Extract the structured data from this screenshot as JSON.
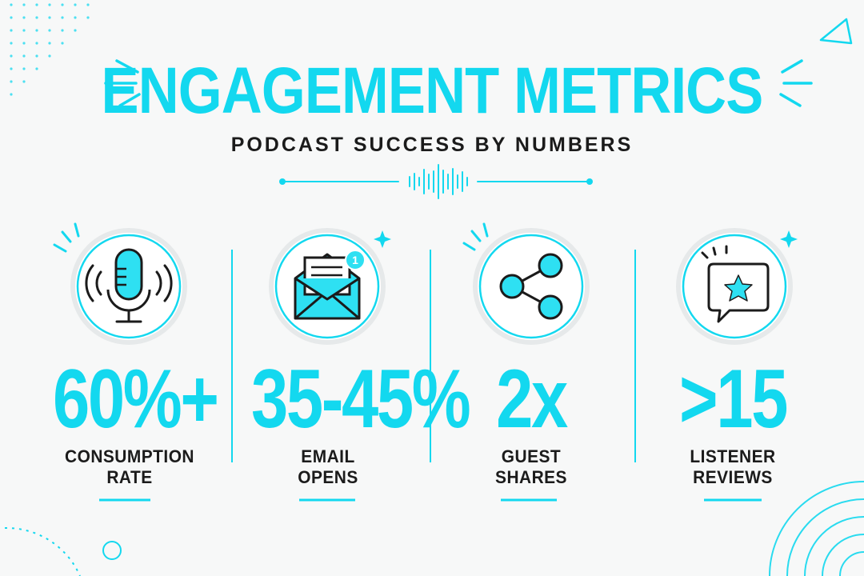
{
  "title": "ENGAGEMENT METRICS",
  "subtitle": "PODCAST SUCCESS BY NUMBERS",
  "colors": {
    "accent": "#13d8ef",
    "accent_fill": "#2ee0f2",
    "text": "#1b1b1b",
    "background": "#f7f8f8"
  },
  "metrics": [
    {
      "icon": "microphone-icon",
      "value": "60%+",
      "label_line1": "CONSUMPTION",
      "label_line2": "RATE"
    },
    {
      "icon": "email-icon",
      "badge": "1",
      "value": "35-45%",
      "label_line1": "EMAIL",
      "label_line2": "OPENS"
    },
    {
      "icon": "share-icon",
      "value": "2x",
      "label_line1": "GUEST",
      "label_line2": "SHARES"
    },
    {
      "icon": "star-review-icon",
      "value": ">15",
      "label_line1": "LISTENER",
      "label_line2": "REVIEWS"
    }
  ]
}
